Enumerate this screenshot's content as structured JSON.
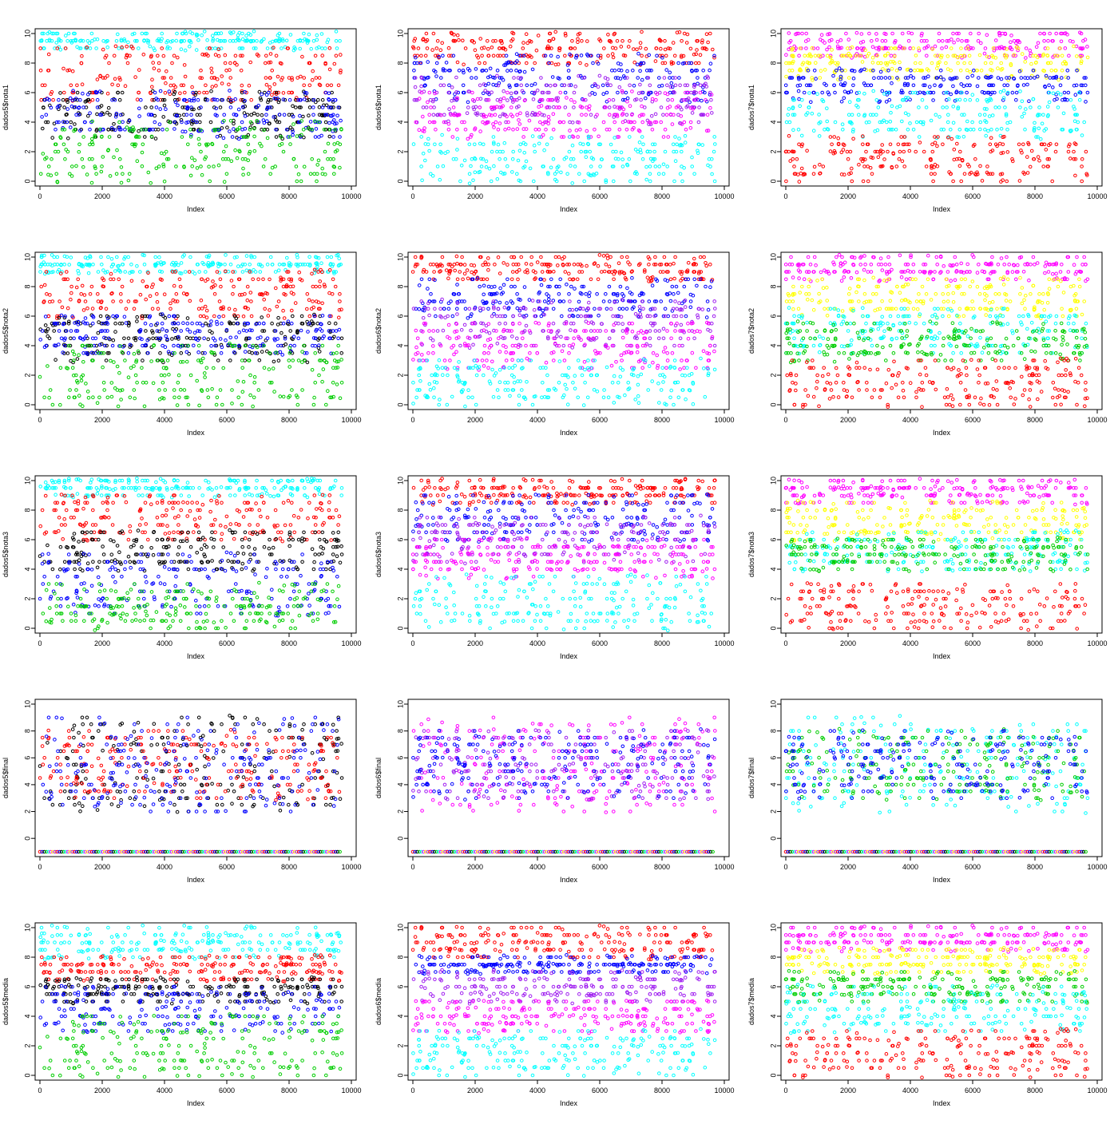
{
  "palette": {
    "black": "#000000",
    "red": "#ff0000",
    "green": "#00cd00",
    "blue": "#0000ff",
    "cyan": "#00ffff",
    "magenta": "#ff00ff",
    "yellow": "#ffff00",
    "purple": "#a020f0"
  },
  "chart_data": [
    {
      "type": "scatter",
      "xlabel": "Index",
      "ylabel": "dados5$nota1",
      "xlim": [
        0,
        10000
      ],
      "ylim": [
        0,
        10
      ],
      "x_ticks": [
        0,
        2000,
        4000,
        6000,
        8000,
        10000
      ],
      "y_ticks": [
        0,
        2,
        4,
        6,
        8,
        10
      ],
      "grid": false,
      "n_points": 9700,
      "series": [
        {
          "color": "cyan",
          "range": [
            9,
            10
          ]
        },
        {
          "color": "red",
          "range": [
            5.5,
            9
          ]
        },
        {
          "color": "black",
          "range": [
            3,
            6
          ]
        },
        {
          "color": "blue",
          "range": [
            3,
            6
          ]
        },
        {
          "color": "green",
          "range": [
            0,
            4
          ]
        }
      ]
    },
    {
      "type": "scatter",
      "xlabel": "Index",
      "ylabel": "dados6$nota1",
      "xlim": [
        0,
        10000
      ],
      "ylim": [
        0,
        10
      ],
      "x_ticks": [
        0,
        2000,
        4000,
        6000,
        8000,
        10000
      ],
      "y_ticks": [
        0,
        2,
        4,
        6,
        8,
        10
      ],
      "grid": false,
      "n_points": 9700,
      "series": [
        {
          "color": "red",
          "range": [
            8,
            10
          ]
        },
        {
          "color": "blue",
          "range": [
            5.5,
            8.5
          ]
        },
        {
          "color": "purple",
          "range": [
            4,
            7
          ]
        },
        {
          "color": "magenta",
          "range": [
            3,
            6
          ]
        },
        {
          "color": "cyan",
          "range": [
            0,
            3
          ]
        }
      ]
    },
    {
      "type": "scatter",
      "xlabel": "Index",
      "ylabel": "dados7$nota1",
      "xlim": [
        0,
        10000
      ],
      "ylim": [
        0,
        10
      ],
      "x_ticks": [
        0,
        2000,
        4000,
        6000,
        8000,
        10000
      ],
      "y_ticks": [
        0,
        2,
        4,
        6,
        8,
        10
      ],
      "grid": false,
      "n_points": 9700,
      "series": [
        {
          "color": "magenta",
          "range": [
            8.5,
            10
          ]
        },
        {
          "color": "yellow",
          "range": [
            7,
            9
          ]
        },
        {
          "color": "blue",
          "range": [
            5.5,
            7.5
          ]
        },
        {
          "color": "cyan",
          "range": [
            3,
            6
          ]
        },
        {
          "color": "red",
          "range": [
            0,
            3
          ]
        }
      ]
    },
    {
      "type": "scatter",
      "xlabel": "Index",
      "ylabel": "dados5$nota2",
      "xlim": [
        0,
        10000
      ],
      "ylim": [
        0,
        10
      ],
      "x_ticks": [
        0,
        2000,
        4000,
        6000,
        8000,
        10000
      ],
      "y_ticks": [
        0,
        2,
        4,
        6,
        8,
        10
      ],
      "grid": false,
      "n_points": 9700,
      "series": [
        {
          "color": "cyan",
          "range": [
            9,
            10
          ]
        },
        {
          "color": "red",
          "range": [
            6,
            9
          ]
        },
        {
          "color": "black",
          "range": [
            3,
            6
          ]
        },
        {
          "color": "blue",
          "range": [
            3.5,
            6
          ]
        },
        {
          "color": "green",
          "range": [
            0,
            4
          ]
        }
      ]
    },
    {
      "type": "scatter",
      "xlabel": "Index",
      "ylabel": "dados6$nota2",
      "xlim": [
        0,
        10000
      ],
      "ylim": [
        0,
        10
      ],
      "x_ticks": [
        0,
        2000,
        4000,
        6000,
        8000,
        10000
      ],
      "y_ticks": [
        0,
        2,
        4,
        6,
        8,
        10
      ],
      "grid": false,
      "n_points": 9700,
      "series": [
        {
          "color": "red",
          "range": [
            8.5,
            10
          ]
        },
        {
          "color": "blue",
          "range": [
            6,
            8.5
          ]
        },
        {
          "color": "purple",
          "range": [
            4,
            7
          ]
        },
        {
          "color": "magenta",
          "range": [
            2.5,
            5.5
          ]
        },
        {
          "color": "cyan",
          "range": [
            0,
            3
          ]
        }
      ]
    },
    {
      "type": "scatter",
      "xlabel": "Index",
      "ylabel": "dados7$nota2",
      "xlim": [
        0,
        10000
      ],
      "ylim": [
        0,
        10
      ],
      "x_ticks": [
        0,
        2000,
        4000,
        6000,
        8000,
        10000
      ],
      "y_ticks": [
        0,
        2,
        4,
        6,
        8,
        10
      ],
      "grid": false,
      "n_points": 9700,
      "series": [
        {
          "color": "magenta",
          "range": [
            8.5,
            10
          ]
        },
        {
          "color": "yellow",
          "range": [
            6,
            8.5
          ]
        },
        {
          "color": "cyan",
          "range": [
            3.5,
            6.5
          ]
        },
        {
          "color": "green",
          "range": [
            3,
            5.5
          ]
        },
        {
          "color": "red",
          "range": [
            0,
            3
          ]
        }
      ]
    },
    {
      "type": "scatter",
      "xlabel": "Index",
      "ylabel": "dados5$nota3",
      "xlim": [
        0,
        10000
      ],
      "ylim": [
        0,
        10
      ],
      "x_ticks": [
        0,
        2000,
        4000,
        6000,
        8000,
        10000
      ],
      "y_ticks": [
        0,
        2,
        4,
        6,
        8,
        10
      ],
      "grid": false,
      "n_points": 9700,
      "series": [
        {
          "color": "cyan",
          "range": [
            9,
            10
          ]
        },
        {
          "color": "red",
          "range": [
            6,
            9
          ]
        },
        {
          "color": "black",
          "range": [
            4,
            6.5
          ]
        },
        {
          "color": "blue",
          "range": [
            1,
            5
          ]
        },
        {
          "color": "green",
          "range": [
            0,
            3
          ]
        }
      ]
    },
    {
      "type": "scatter",
      "xlabel": "Index",
      "ylabel": "dados6$nota3",
      "xlim": [
        0,
        10000
      ],
      "ylim": [
        0,
        10
      ],
      "x_ticks": [
        0,
        2000,
        4000,
        6000,
        8000,
        10000
      ],
      "y_ticks": [
        0,
        2,
        4,
        6,
        8,
        10
      ],
      "grid": false,
      "n_points": 9700,
      "series": [
        {
          "color": "red",
          "range": [
            8.5,
            10
          ]
        },
        {
          "color": "blue",
          "range": [
            6,
            9
          ]
        },
        {
          "color": "purple",
          "range": [
            4.5,
            7.5
          ]
        },
        {
          "color": "magenta",
          "range": [
            3.5,
            6
          ]
        },
        {
          "color": "cyan",
          "range": [
            0,
            3.5
          ]
        }
      ]
    },
    {
      "type": "scatter",
      "xlabel": "Index",
      "ylabel": "dados7$nota3",
      "xlim": [
        0,
        10000
      ],
      "ylim": [
        0,
        10
      ],
      "x_ticks": [
        0,
        2000,
        4000,
        6000,
        8000,
        10000
      ],
      "y_ticks": [
        0,
        2,
        4,
        6,
        8,
        10
      ],
      "grid": false,
      "n_points": 9700,
      "series": [
        {
          "color": "magenta",
          "range": [
            8.5,
            10
          ]
        },
        {
          "color": "yellow",
          "range": [
            6,
            8.5
          ]
        },
        {
          "color": "cyan",
          "range": [
            4,
            6.5
          ]
        },
        {
          "color": "green",
          "range": [
            4,
            6
          ]
        },
        {
          "color": "red",
          "range": [
            0,
            3
          ]
        }
      ]
    },
    {
      "type": "scatter",
      "xlabel": "Index",
      "ylabel": "dados5$final",
      "xlim": [
        0,
        10000
      ],
      "ylim": [
        -1,
        10
      ],
      "x_ticks": [
        0,
        2000,
        4000,
        6000,
        8000,
        10000
      ],
      "y_ticks": [
        0,
        2,
        4,
        6,
        8,
        10
      ],
      "grid": false,
      "n_points": 9700,
      "series": [
        {
          "color": "black",
          "range": [
            2,
            9
          ]
        },
        {
          "color": "red",
          "range": [
            3,
            8
          ]
        },
        {
          "color": "blue",
          "range": [
            2,
            9
          ]
        },
        {
          "color": "multi",
          "range": [
            -1,
            -1
          ]
        }
      ]
    },
    {
      "type": "scatter",
      "xlabel": "Index",
      "ylabel": "dados6$final",
      "xlim": [
        0,
        10000
      ],
      "ylim": [
        -1,
        10
      ],
      "x_ticks": [
        0,
        2000,
        4000,
        6000,
        8000,
        10000
      ],
      "y_ticks": [
        0,
        2,
        4,
        6,
        8,
        10
      ],
      "grid": false,
      "n_points": 9700,
      "series": [
        {
          "color": "magenta",
          "range": [
            2,
            9
          ]
        },
        {
          "color": "purple",
          "range": [
            3,
            8
          ]
        },
        {
          "color": "blue",
          "range": [
            3,
            8
          ]
        },
        {
          "color": "multi",
          "range": [
            -1,
            -1
          ]
        }
      ]
    },
    {
      "type": "scatter",
      "xlabel": "Index",
      "ylabel": "dados7$final",
      "xlim": [
        0,
        10000
      ],
      "ylim": [
        -1,
        10
      ],
      "x_ticks": [
        0,
        2000,
        4000,
        6000,
        8000,
        10000
      ],
      "y_ticks": [
        0,
        2,
        4,
        6,
        8,
        10
      ],
      "grid": false,
      "n_points": 9700,
      "series": [
        {
          "color": "cyan",
          "range": [
            2,
            9
          ]
        },
        {
          "color": "green",
          "range": [
            3,
            8
          ]
        },
        {
          "color": "blue",
          "range": [
            3,
            8
          ]
        },
        {
          "color": "multi",
          "range": [
            -1,
            -1
          ]
        }
      ]
    },
    {
      "type": "scatter",
      "xlabel": "Index",
      "ylabel": "dados5$media",
      "xlim": [
        0,
        10000
      ],
      "ylim": [
        0,
        10
      ],
      "x_ticks": [
        0,
        2000,
        4000,
        6000,
        8000,
        10000
      ],
      "y_ticks": [
        0,
        2,
        4,
        6,
        8,
        10
      ],
      "grid": false,
      "n_points": 9700,
      "series": [
        {
          "color": "cyan",
          "range": [
            8,
            10
          ]
        },
        {
          "color": "red",
          "range": [
            6.5,
            8
          ]
        },
        {
          "color": "black",
          "range": [
            5,
            6.5
          ]
        },
        {
          "color": "blue",
          "range": [
            3,
            6
          ]
        },
        {
          "color": "green",
          "range": [
            0,
            4
          ]
        }
      ]
    },
    {
      "type": "scatter",
      "xlabel": "Index",
      "ylabel": "dados6$media",
      "xlim": [
        0,
        10000
      ],
      "ylim": [
        0,
        10
      ],
      "x_ticks": [
        0,
        2000,
        4000,
        6000,
        8000,
        10000
      ],
      "y_ticks": [
        0,
        2,
        4,
        6,
        8,
        10
      ],
      "grid": false,
      "n_points": 9700,
      "series": [
        {
          "color": "red",
          "range": [
            8,
            10
          ]
        },
        {
          "color": "blue",
          "range": [
            7,
            8
          ]
        },
        {
          "color": "purple",
          "range": [
            5,
            7
          ]
        },
        {
          "color": "magenta",
          "range": [
            3,
            5
          ]
        },
        {
          "color": "cyan",
          "range": [
            0,
            3
          ]
        }
      ]
    },
    {
      "type": "scatter",
      "xlabel": "Index",
      "ylabel": "dados7$media",
      "xlim": [
        0,
        10000
      ],
      "ylim": [
        0,
        10
      ],
      "x_ticks": [
        0,
        2000,
        4000,
        6000,
        8000,
        10000
      ],
      "y_ticks": [
        0,
        2,
        4,
        6,
        8,
        10
      ],
      "grid": false,
      "n_points": 9700,
      "series": [
        {
          "color": "magenta",
          "range": [
            8.5,
            10
          ]
        },
        {
          "color": "yellow",
          "range": [
            7,
            8.5
          ]
        },
        {
          "color": "green",
          "range": [
            5,
            7
          ]
        },
        {
          "color": "cyan",
          "range": [
            3,
            6
          ]
        },
        {
          "color": "red",
          "range": [
            0,
            3
          ]
        }
      ]
    }
  ]
}
